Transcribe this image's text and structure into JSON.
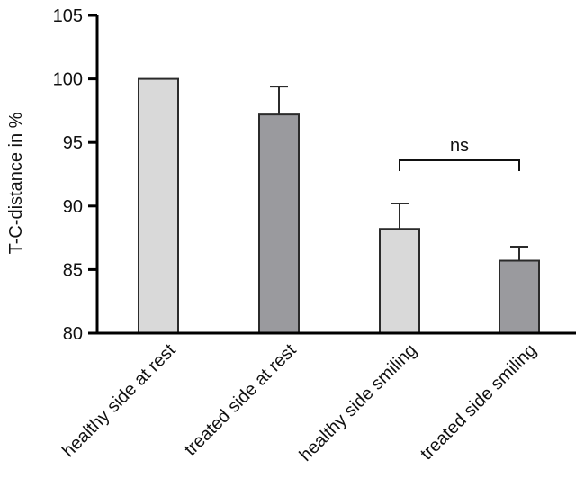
{
  "chart_data": {
    "type": "bar",
    "categories": [
      "healthy side at rest",
      "treated side at rest",
      "healthy side smiling",
      "treated side smiling"
    ],
    "values": [
      100,
      97.2,
      88.2,
      85.7
    ],
    "error_bars": [
      null,
      2.2,
      2.0,
      1.1
    ],
    "bar_colors": [
      "#d9d9d9",
      "#9a9a9e",
      "#d9d9d9",
      "#9a9a9e"
    ],
    "ylabel": "T-C-distance in %",
    "xlabel": "",
    "ylim": [
      80,
      105
    ],
    "yticks": [
      80,
      85,
      90,
      95,
      100,
      105
    ],
    "grid": false,
    "annotations": [
      {
        "text": "ns",
        "between": [
          "healthy side smiling",
          "treated side smiling"
        ]
      }
    ]
  }
}
